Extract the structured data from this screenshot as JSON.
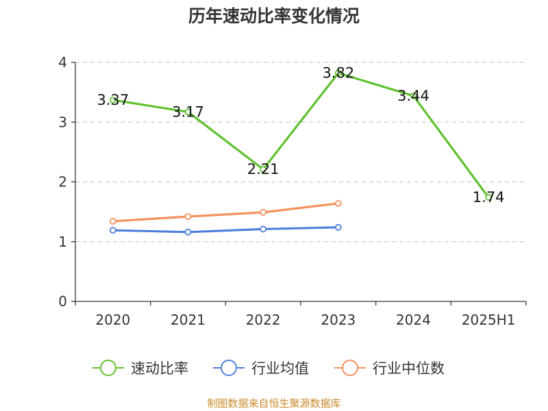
{
  "title": "历年速动比率变化情况",
  "source": "制图数据来自恒生聚源数据库",
  "chart_data": {
    "type": "line",
    "categories": [
      "2020",
      "2021",
      "2022",
      "2023",
      "2024",
      "2025H1"
    ],
    "ylim": [
      0,
      4
    ],
    "yticks": [
      "0",
      "1",
      "2",
      "3",
      "4"
    ],
    "grid": true,
    "legend_position": "bottom",
    "series": [
      {
        "name": "速动比率",
        "values": [
          3.37,
          3.17,
          2.21,
          3.82,
          3.44,
          1.74
        ],
        "labels": [
          "3.37",
          "3.17",
          "2.21",
          "3.82",
          "3.44",
          "1.74"
        ],
        "color": "#5ec12d"
      },
      {
        "name": "行业均值",
        "values": [
          1.19,
          1.16,
          1.21,
          1.24,
          null,
          null
        ],
        "color": "#4f7fdc"
      },
      {
        "name": "行业中位数",
        "values": [
          1.34,
          1.42,
          1.49,
          1.64,
          null,
          null
        ],
        "color": "#f5905a"
      }
    ]
  }
}
